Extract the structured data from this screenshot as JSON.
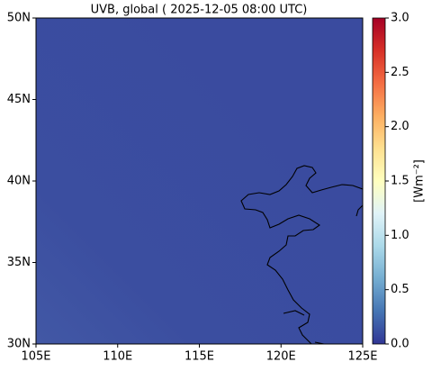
{
  "chart_data": {
    "type": "map",
    "title": "UVB, global ( 2025-12-05 08:00 UTC)",
    "xlim": [
      105,
      125
    ],
    "ylim": [
      30,
      50
    ],
    "xticks": [
      {
        "value": 105,
        "label": "105E"
      },
      {
        "value": 110,
        "label": "110E"
      },
      {
        "value": 115,
        "label": "115E"
      },
      {
        "value": 120,
        "label": "120E"
      },
      {
        "value": 125,
        "label": "125E"
      }
    ],
    "yticks": [
      {
        "value": 30,
        "label": "30N"
      },
      {
        "value": 35,
        "label": "35N"
      },
      {
        "value": 40,
        "label": "40N"
      },
      {
        "value": 45,
        "label": "45N"
      },
      {
        "value": 50,
        "label": "50N"
      }
    ],
    "colorbar": {
      "label": "[Wm⁻²]",
      "lim": [
        0,
        3
      ],
      "ticks": [
        {
          "value": 0,
          "label": "0.0"
        },
        {
          "value": 0.5,
          "label": "0.5"
        },
        {
          "value": 1,
          "label": "1.0"
        },
        {
          "value": 1.5,
          "label": "1.5"
        },
        {
          "value": 2,
          "label": "2.0"
        },
        {
          "value": 2.5,
          "label": "2.5"
        },
        {
          "value": 3,
          "label": "3.0"
        }
      ],
      "colors": [
        "#313695",
        "#4575b4",
        "#74add1",
        "#abd9e9",
        "#e0f3f8",
        "#ffffbf",
        "#fee090",
        "#fdae61",
        "#f46d43",
        "#d73027",
        "#a50026"
      ]
    }
  }
}
